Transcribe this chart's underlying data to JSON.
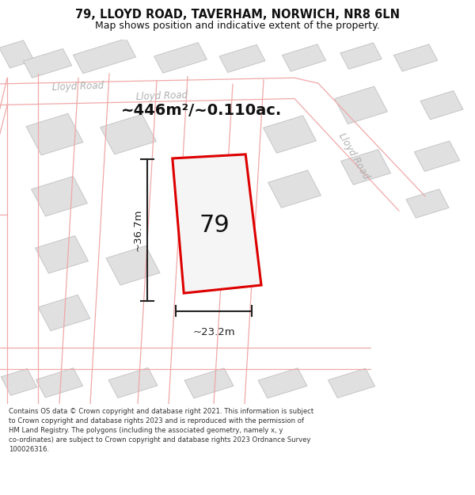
{
  "title_line1": "79, LLOYD ROAD, TAVERHAM, NORWICH, NR8 6LN",
  "title_line2": "Map shows position and indicative extent of the property.",
  "footer_text": "Contains OS data © Crown copyright and database right 2021. This information is subject\nto Crown copyright and database rights 2023 and is reproduced with the permission of\nHM Land Registry. The polygons (including the associated geometry, namely x, y\nco-ordinates) are subject to Crown copyright and database rights 2023 Ordnance Survey\n100026316.",
  "area_label": "~446m²/~0.110ac.",
  "number_label": "79",
  "dim_height_label": "~36.7m",
  "dim_width_label": "~23.2m",
  "road_label_tl": "Lloyd Road",
  "road_label_mid": "Lloyd Road",
  "road_label_r": "Lloyd Road",
  "map_bg": "#f8f8f8",
  "building_fill": "#e0e0e0",
  "building_edge": "#c0c0c0",
  "road_line_color": "#f0a8a8",
  "plot_color": "#dd0000",
  "plot_fill": "#f5f5f5",
  "dim_color": "#222222",
  "text_dark": "#111111",
  "text_road": "#b0b0b0",
  "title_fontsize": 10.5,
  "subtitle_fontsize": 9.0,
  "area_fontsize": 14.0,
  "number_fontsize": 22,
  "dim_fontsize": 9.5,
  "road_fontsize": 8.5,
  "footer_fontsize": 6.1
}
